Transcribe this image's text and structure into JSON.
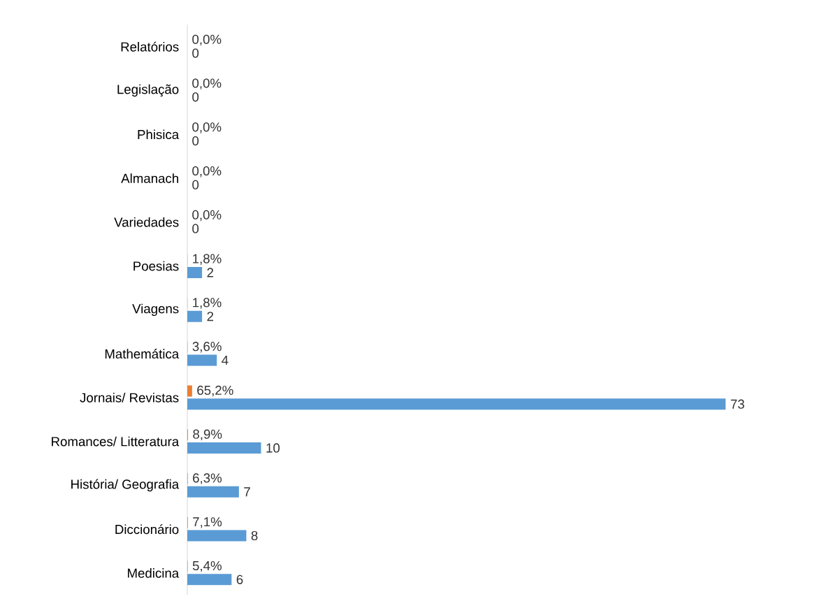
{
  "chart_data": {
    "type": "bar",
    "orientation": "horizontal",
    "categories": [
      "Relatórios",
      "Legislação",
      "Phisica",
      "Almanach",
      "Variedades",
      "Poesias",
      "Viagens",
      "Mathemática",
      "Jornais/ Revistas",
      "Romances/ Litteratura",
      "História/ Geografia",
      "Diccionário",
      "Medicina"
    ],
    "series": [
      {
        "color": "#5b9bd5",
        "values": [
          0,
          0,
          0,
          0,
          0,
          2,
          2,
          4,
          73,
          10,
          7,
          8,
          6
        ],
        "value_labels": [
          "0",
          "0",
          "0",
          "0",
          "0",
          "2",
          "2",
          "4",
          "73",
          "10",
          "7",
          "8",
          "6"
        ]
      },
      {
        "color": "#ed7d31",
        "values": [
          0,
          0,
          0,
          0,
          0,
          0.018,
          0.018,
          0.036,
          0.652,
          0.089,
          0.063,
          0.071,
          0.054
        ],
        "value_labels": [
          "0,0%",
          "0,0%",
          "0,0%",
          "0,0%",
          "0,0%",
          "1,8%",
          "1,8%",
          "3,6%",
          "65,2%",
          "8,9%",
          "6,3%",
          "7,1%",
          "5,4%"
        ]
      }
    ],
    "grid": false
  }
}
